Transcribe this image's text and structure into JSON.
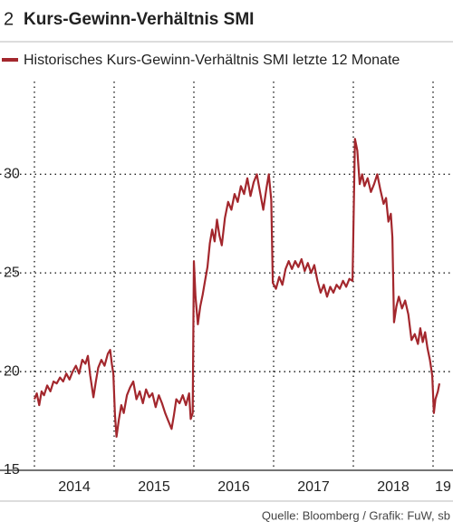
{
  "chart_data": {
    "type": "line",
    "figure_number": "2",
    "title": "Kurs-Gewinn-Verhältnis SMI",
    "source": "Quelle: Bloomberg / Grafik: FuW, sb",
    "x": [
      2014.0,
      2014.03,
      2014.06,
      2014.09,
      2014.12,
      2014.16,
      2014.2,
      2014.24,
      2014.28,
      2014.32,
      2014.36,
      2014.4,
      2014.44,
      2014.48,
      2014.52,
      2014.56,
      2014.6,
      2014.64,
      2014.67,
      2014.7,
      2014.74,
      2014.77,
      2014.8,
      2014.84,
      2014.88,
      2014.92,
      2014.95,
      2014.97,
      2014.99,
      2015.01,
      2015.03,
      2015.06,
      2015.09,
      2015.12,
      2015.16,
      2015.2,
      2015.24,
      2015.28,
      2015.32,
      2015.36,
      2015.4,
      2015.44,
      2015.48,
      2015.52,
      2015.56,
      2015.6,
      2015.64,
      2015.68,
      2015.72,
      2015.75,
      2015.78,
      2015.82,
      2015.86,
      2015.9,
      2015.94,
      2015.96,
      2015.985,
      2016.0,
      2016.02,
      2016.05,
      2016.08,
      2016.11,
      2016.14,
      2016.17,
      2016.2,
      2016.23,
      2016.26,
      2016.29,
      2016.32,
      2016.35,
      2016.39,
      2016.43,
      2016.47,
      2016.51,
      2016.55,
      2016.59,
      2016.63,
      2016.67,
      2016.71,
      2016.75,
      2016.79,
      2016.83,
      2016.87,
      2016.91,
      2016.94,
      2016.97,
      2016.99,
      2017.03,
      2017.07,
      2017.11,
      2017.15,
      2017.19,
      2017.23,
      2017.27,
      2017.31,
      2017.35,
      2017.39,
      2017.43,
      2017.47,
      2017.51,
      2017.55,
      2017.59,
      2017.63,
      2017.67,
      2017.71,
      2017.75,
      2017.79,
      2017.83,
      2017.87,
      2017.91,
      2017.95,
      2017.99,
      2018.02,
      2018.05,
      2018.08,
      2018.11,
      2018.14,
      2018.18,
      2018.22,
      2018.26,
      2018.3,
      2018.34,
      2018.38,
      2018.41,
      2018.44,
      2018.47,
      2018.49,
      2018.51,
      2018.54,
      2018.57,
      2018.61,
      2018.65,
      2018.69,
      2018.73,
      2018.77,
      2018.81,
      2018.84,
      2018.87,
      2018.9,
      2018.93,
      2018.96,
      2018.99,
      2019.01,
      2019.03,
      2019.06,
      2019.08
    ],
    "series": [
      {
        "name": "Historisches Kurs-Gewinn-Verhältnis SMI letzte 12 Monate",
        "color": "#a3272d",
        "values": [
          18.6,
          18.9,
          18.3,
          19.0,
          18.8,
          19.3,
          19.0,
          19.5,
          19.4,
          19.7,
          19.5,
          19.9,
          19.6,
          20.0,
          20.3,
          19.9,
          20.6,
          20.4,
          20.8,
          19.8,
          18.7,
          19.5,
          20.2,
          20.6,
          20.3,
          20.9,
          21.1,
          20.4,
          19.9,
          17.8,
          16.7,
          17.6,
          18.3,
          17.9,
          18.8,
          19.2,
          19.5,
          18.6,
          19.0,
          18.4,
          19.1,
          18.7,
          18.9,
          18.2,
          18.8,
          18.4,
          17.9,
          17.5,
          17.1,
          17.8,
          18.6,
          18.4,
          18.8,
          18.3,
          18.9,
          17.6,
          17.9,
          25.6,
          23.8,
          22.4,
          23.3,
          23.9,
          24.6,
          25.3,
          26.5,
          27.2,
          26.6,
          27.7,
          26.9,
          26.4,
          27.8,
          28.6,
          28.2,
          29.0,
          28.6,
          29.4,
          29.0,
          29.8,
          28.9,
          29.6,
          30.0,
          29.1,
          28.2,
          29.3,
          30.0,
          28.7,
          24.5,
          24.2,
          24.8,
          24.4,
          25.2,
          25.6,
          25.2,
          25.6,
          25.3,
          25.7,
          25.1,
          25.5,
          25.0,
          25.4,
          24.6,
          24.0,
          24.4,
          23.8,
          24.3,
          24.0,
          24.4,
          24.2,
          24.6,
          24.3,
          24.7,
          24.6,
          31.8,
          31.2,
          29.5,
          30.0,
          29.4,
          29.8,
          29.1,
          29.5,
          30.0,
          29.2,
          28.5,
          28.8,
          27.6,
          28.0,
          26.8,
          22.5,
          23.3,
          23.8,
          23.2,
          23.6,
          22.9,
          21.6,
          21.9,
          21.4,
          22.2,
          21.5,
          22.0,
          21.2,
          20.6,
          19.8,
          17.9,
          18.6,
          19.0,
          19.4
        ]
      }
    ],
    "xlim": [
      2014,
      2019.25
    ],
    "xticks": [
      2014,
      2015,
      2016,
      2017,
      2018,
      {
        "value": 2019,
        "label": "19"
      }
    ],
    "ylim": [
      15,
      34.7
    ],
    "yticks": [
      15,
      20,
      25,
      30
    ],
    "grid": true
  }
}
